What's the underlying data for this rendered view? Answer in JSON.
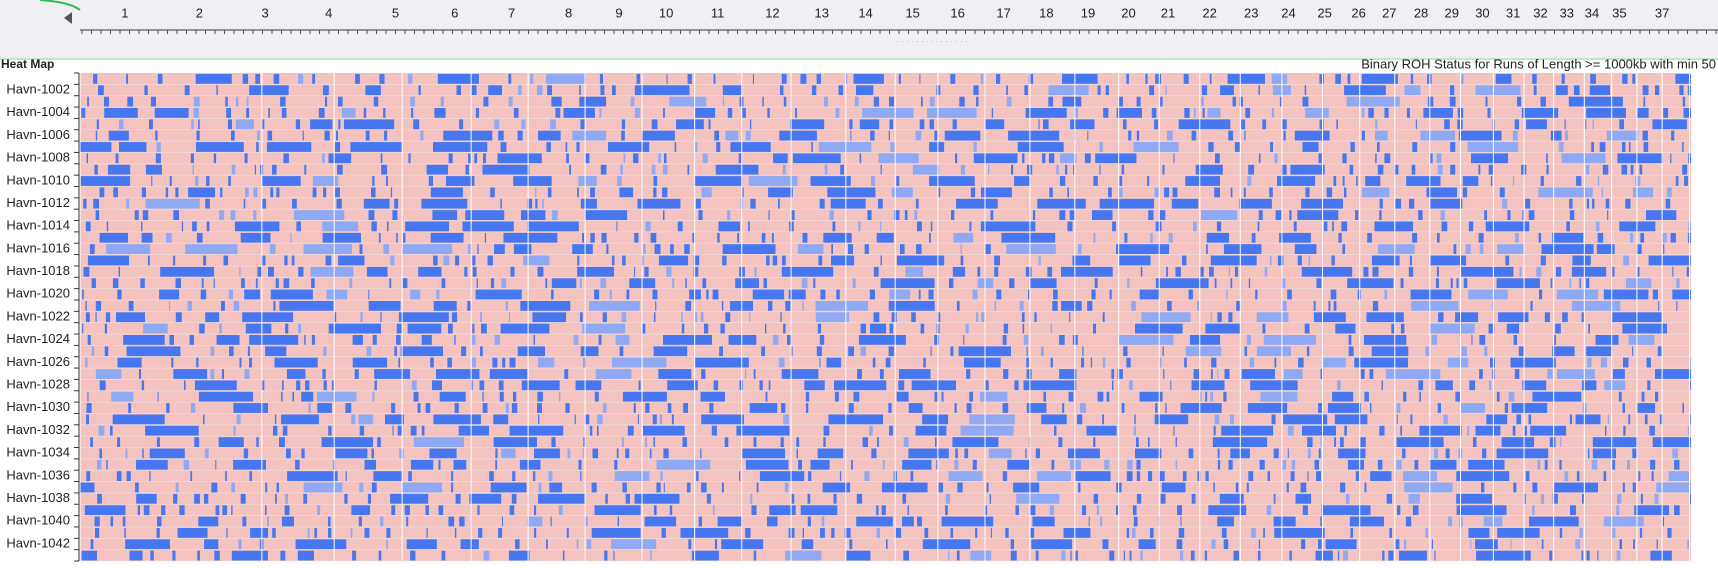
{
  "ruler": {
    "labels": [
      "1",
      "2",
      "3",
      "4",
      "5",
      "6",
      "7",
      "8",
      "9",
      "10",
      "11",
      "12",
      "13",
      "14",
      "15",
      "16",
      "17",
      "18",
      "19",
      "20",
      "21",
      "22",
      "23",
      "24",
      "25",
      "26",
      "27",
      "28",
      "29",
      "30",
      "31",
      "32",
      "33",
      "34",
      "35",
      "37"
    ]
  },
  "heatmap": {
    "title": "Heat Map",
    "subtitle": "Binary ROH Status for Runs of Length >= 1000kb with min 50",
    "rows": [
      "Havn-1002",
      "Havn-1004",
      "Havn-1006",
      "Havn-1008",
      "Havn-1010",
      "Havn-1012",
      "Havn-1014",
      "Havn-1016",
      "Havn-1018",
      "Havn-1020",
      "Havn-1022",
      "Havn-1024",
      "Havn-1026",
      "Havn-1028",
      "Havn-1030",
      "Havn-1032",
      "Havn-1034",
      "Havn-1036",
      "Havn-1038",
      "Havn-1040",
      "Havn-1042"
    ]
  }
}
